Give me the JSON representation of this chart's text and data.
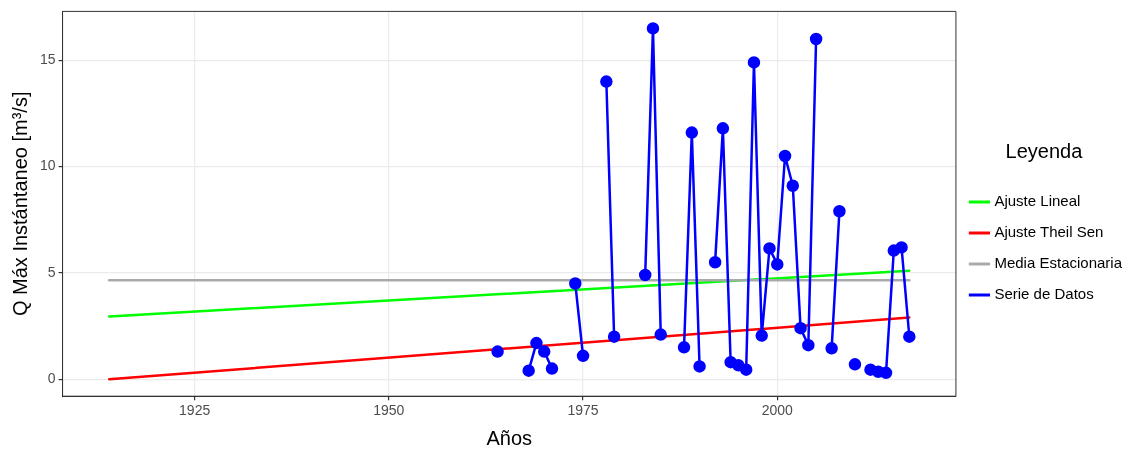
{
  "chart_data": {
    "type": "line",
    "xlabel": "Años",
    "ylabel": "Q Máx Instántaneo [m³/s]",
    "legend_title": "Leyenda",
    "legend": "right",
    "grid": true,
    "xlim": [
      1908,
      2023
    ],
    "xticks": [
      1925,
      1950,
      1975,
      2000
    ],
    "ylim": [
      -0.8,
      17.3
    ],
    "yticks": [
      0,
      5,
      10,
      15
    ],
    "series": [
      {
        "name": "Ajuste Lineal",
        "color": "#00ff00",
        "marker": "none",
        "x": [
          1914,
          2017
        ],
        "values": [
          2.95,
          5.1
        ]
      },
      {
        "name": "Ajuste Theil Sen",
        "color": "#ff0000",
        "marker": "none",
        "x": [
          1914,
          2017
        ],
        "values": [
          0,
          2.9
        ]
      },
      {
        "name": "Media Estacionaria",
        "color": "#aaaaaa",
        "marker": "none",
        "x": [
          1914,
          2017
        ],
        "values": [
          4.65,
          4.65
        ]
      },
      {
        "name": "Serie de Datos",
        "color": "#0000ff",
        "marker": "circle",
        "x": [
          1964,
          1965,
          1968,
          1969,
          1970,
          1971,
          1972,
          1974,
          1975,
          1976,
          1978,
          1979,
          1980,
          1983,
          1984,
          1985,
          1986,
          1988,
          1989,
          1990,
          1991,
          1992,
          1993,
          1994,
          1995,
          1996,
          1997,
          1998,
          1999,
          2000,
          2001,
          2002,
          2003,
          2004,
          2005,
          2006,
          2007,
          2008,
          2009,
          2010,
          2011,
          2012,
          2013,
          2014,
          2015,
          2016,
          2017
        ],
        "values": [
          1.3,
          null,
          0.4,
          1.7,
          1.3,
          0.5,
          null,
          4.5,
          1.1,
          null,
          14.0,
          2.0,
          null,
          4.9,
          16.5,
          2.1,
          null,
          1.5,
          11.6,
          0.6,
          null,
          5.5,
          11.8,
          0.8,
          0.65,
          0.45,
          14.9,
          2.05,
          6.15,
          5.4,
          10.5,
          9.1,
          2.4,
          1.6,
          16.0,
          null,
          1.45,
          7.9,
          null,
          0.7,
          null,
          0.45,
          0.35,
          0.3,
          6.05,
          6.2,
          2.0
        ]
      }
    ]
  }
}
